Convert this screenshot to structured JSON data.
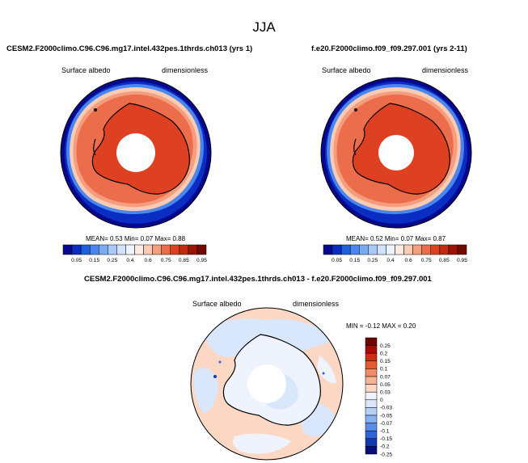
{
  "chart_data": {
    "type": "heatmap",
    "title": "JJA",
    "panels": [
      {
        "id": "test",
        "case_title": "CESM2.F2000climo.C96.C96.mg17.intel.432pes.1thrds.ch013 (yrs 1)",
        "variable_label": "Surface albedo",
        "units_label": "dimensionless",
        "stats": {
          "mean_label": "MEAN=",
          "mean": "0.53",
          "min_label": "Min=",
          "min": "0.07",
          "max_label": "Max=",
          "max": "0.88"
        },
        "colorbar_ticks": [
          "0.05",
          "0.15",
          "0.25",
          "0.4",
          "0.6",
          "0.75",
          "0.85",
          "0.95"
        ]
      },
      {
        "id": "reference",
        "case_title": "f.e20.F2000climo.f09_f09.297.001 (yrs 2-11)",
        "variable_label": "Surface albedo",
        "units_label": "dimensionless",
        "stats": {
          "mean_label": "MEAN=",
          "mean": "0.52",
          "min_label": "Min=",
          "min": "0.07",
          "max_label": "Max=",
          "max": "0.87"
        },
        "colorbar_ticks": [
          "0.05",
          "0.15",
          "0.25",
          "0.4",
          "0.6",
          "0.75",
          "0.85",
          "0.95"
        ]
      },
      {
        "id": "difference",
        "case_title": "CESM2.F2000climo.C96.C96.mg17.intel.432pes.1thrds.ch013 - f.e20.F2000climo.f09_f09.297.001",
        "variable_label": "Surface albedo",
        "units_label": "dimensionless",
        "stats_text": "MIN = -0.12 MAX = 0.20",
        "colorbar_ticks": [
          "0.25",
          "0.2",
          "0.15",
          "0.1",
          "0.07",
          "0.05",
          "0.03",
          "0",
          "-0.03",
          "-0.05",
          "-0.07",
          "-0.1",
          "-0.15",
          "-0.2",
          "-0.25"
        ]
      }
    ],
    "color_scales": {
      "albedo": [
        "#08088f",
        "#0a2ec4",
        "#1f5fde",
        "#4a86ec",
        "#7aaaf2",
        "#a9c9f7",
        "#d2e2fb",
        "#eef3fd",
        "#fdebe2",
        "#fbcbb5",
        "#f59d7c",
        "#ec6d4c",
        "#de4122",
        "#c42a10",
        "#9c1306",
        "#720a03"
      ],
      "difference": [
        "#6e0503",
        "#a10e05",
        "#cd2e10",
        "#e45c34",
        "#f08c66",
        "#f6b496",
        "#fbd7c4",
        "#eef3fd",
        "#d8e7fb",
        "#b6d1f6",
        "#88b1ef",
        "#5a8de6",
        "#2f63d6",
        "#1339b0",
        "#07107a"
      ]
    }
  }
}
